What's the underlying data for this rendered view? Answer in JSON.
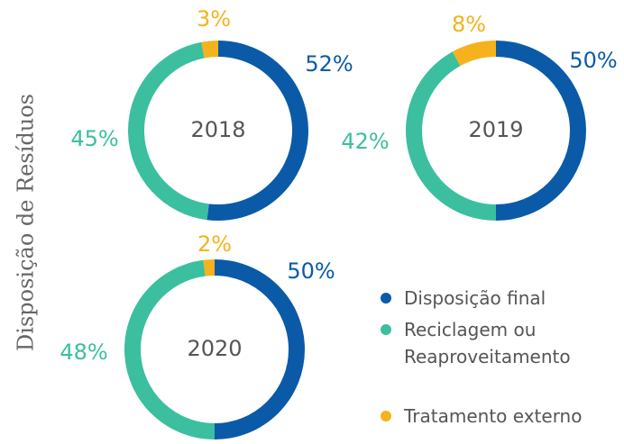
{
  "title": "Disposição de Resíduos",
  "categories": [
    "Disposição final",
    "Reciclagem ou Reaproveitamento",
    "Tratamento externo"
  ],
  "colors": [
    "#0a5aa8",
    "#3bbf9f",
    "#f5b21c"
  ],
  "chart_data": [
    {
      "type": "pie",
      "donut": true,
      "title": "2018",
      "values": [
        52,
        45,
        3
      ],
      "value_labels": [
        "52%",
        "45%",
        "3%"
      ]
    },
    {
      "type": "pie",
      "donut": true,
      "title": "2019",
      "values": [
        50,
        42,
        8
      ],
      "value_labels": [
        "50%",
        "42%",
        "8%"
      ]
    },
    {
      "type": "pie",
      "donut": true,
      "title": "2020",
      "values": [
        50,
        48,
        2
      ],
      "value_labels": [
        "50%",
        "48%",
        "2%"
      ]
    }
  ]
}
